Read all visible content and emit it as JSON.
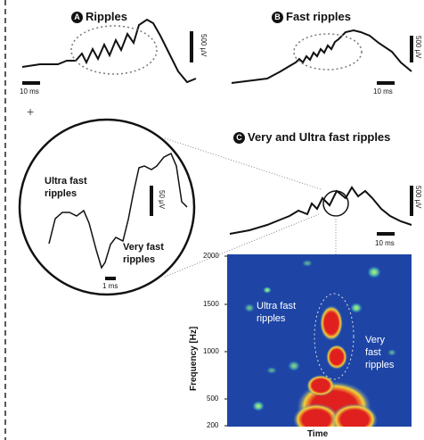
{
  "panel_a": {
    "badge": "A",
    "title": "Ripples",
    "scale_v": "500 µV",
    "scale_t": "10 ms"
  },
  "panel_b": {
    "badge": "B",
    "title": "Fast ripples",
    "scale_v": "500 µV",
    "scale_t": "10 ms"
  },
  "panel_c": {
    "badge": "C",
    "title": "Very and Ultra fast ripples",
    "scale_v": "500 µV",
    "scale_t": "10 ms"
  },
  "zoom": {
    "ultra_label": "Ultra fast ripples",
    "very_label": "Very fast ripples",
    "scale_v": "50 µV",
    "scale_t": "1 ms"
  },
  "spectrogram": {
    "ylabel": "Frequency [Hz]",
    "xlabel": "Time",
    "yticks": [
      "2000",
      "1500",
      "1000",
      "500",
      "200"
    ],
    "ultra_label": "Ultra fast ripples",
    "very_label": "Very fast ripples",
    "colors": {
      "background": "#1a3f9e",
      "low": "#2f6fd0",
      "mid": "#8fe0a0",
      "high": "#f3d23a",
      "peak": "#e0201e"
    }
  }
}
